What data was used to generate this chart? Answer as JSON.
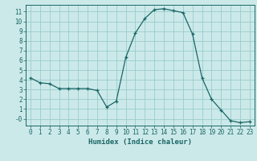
{
  "x": [
    0,
    1,
    2,
    3,
    4,
    5,
    6,
    7,
    8,
    9,
    10,
    11,
    12,
    13,
    14,
    15,
    16,
    17,
    18,
    19,
    20,
    21,
    22,
    23
  ],
  "y": [
    4.2,
    3.7,
    3.6,
    3.1,
    3.1,
    3.1,
    3.1,
    2.9,
    1.2,
    1.8,
    6.3,
    8.8,
    10.3,
    11.2,
    11.3,
    11.1,
    10.9,
    8.7,
    4.2,
    2.0,
    0.9,
    -0.2,
    -0.4,
    -0.3
  ],
  "xlabel": "Humidex (Indice chaleur)",
  "bg_color": "#cce9e9",
  "grid_color": "#99cccc",
  "line_color": "#1a6666",
  "xlim": [
    -0.5,
    23.5
  ],
  "ylim": [
    -0.7,
    11.7
  ],
  "xticks": [
    0,
    1,
    2,
    3,
    4,
    5,
    6,
    7,
    8,
    9,
    10,
    11,
    12,
    13,
    14,
    15,
    16,
    17,
    18,
    19,
    20,
    21,
    22,
    23
  ],
  "yticks": [
    0,
    1,
    2,
    3,
    4,
    5,
    6,
    7,
    8,
    9,
    10,
    11
  ],
  "ytick_labels": [
    "-0",
    "1",
    "2",
    "3",
    "4",
    "5",
    "6",
    "7",
    "8",
    "9",
    "10",
    "11"
  ],
  "tick_fontsize": 5.5,
  "xlabel_fontsize": 6.5
}
